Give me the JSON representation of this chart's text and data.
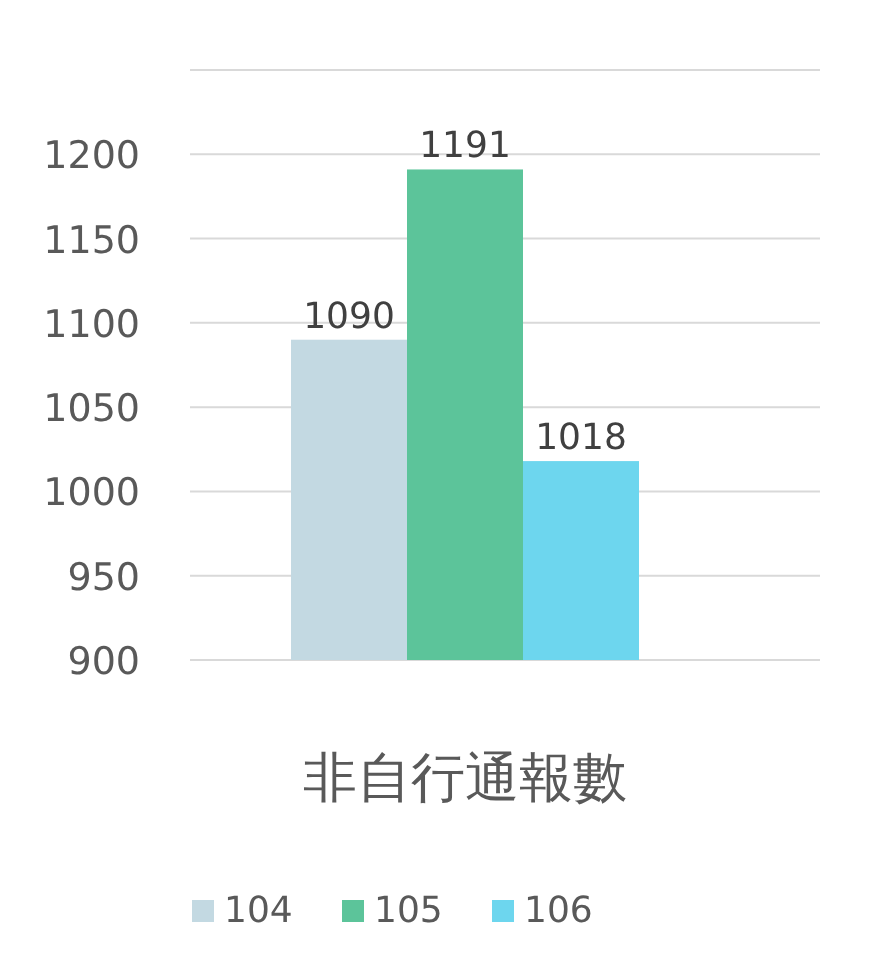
{
  "chart_data": {
    "type": "bar",
    "categories": [
      "非自行通報數"
    ],
    "series": [
      {
        "name": "104",
        "color": "#c3d9e2",
        "values": [
          1090
        ]
      },
      {
        "name": "105",
        "color": "#5cc49a",
        "values": [
          1191
        ]
      },
      {
        "name": "106",
        "color": "#6dd6ee",
        "values": [
          1018
        ]
      }
    ],
    "ylim": [
      900,
      1250
    ],
    "yticks": [
      900,
      950,
      1000,
      1050,
      1100,
      1150,
      1200,
      {
        "value": 1250,
        "label": null
      }
    ],
    "grid": "y",
    "legend": "bottom",
    "data_labels": true
  }
}
